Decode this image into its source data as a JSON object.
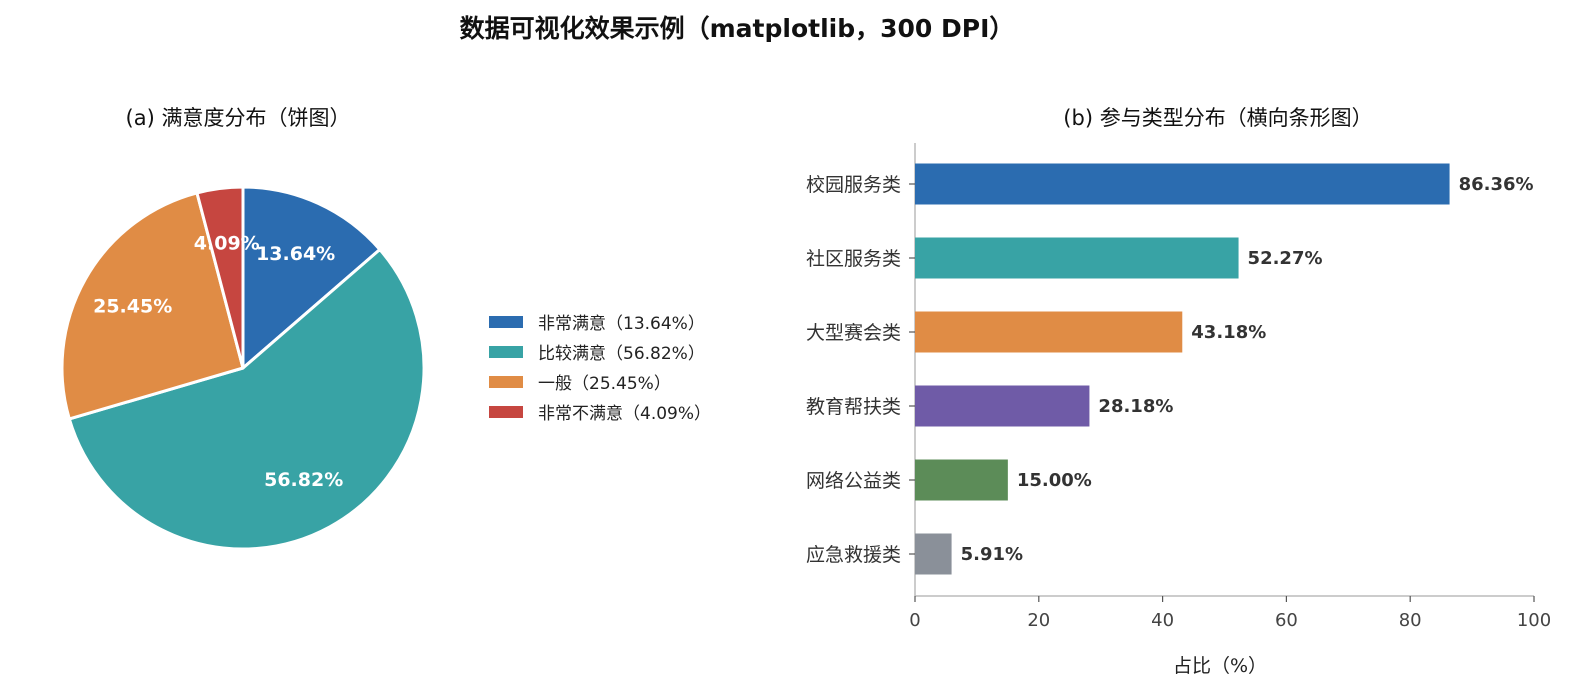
{
  "figure": {
    "title": "数据可视化效果示例（matplotlib，300 DPI）"
  },
  "chart_data": [
    {
      "type": "pie",
      "title": "(a) 满意度分布（饼图）",
      "slices": [
        {
          "label": "非常满意",
          "value": 13.64,
          "pct_label": "13.64%",
          "legend": "非常满意（13.64%）",
          "color": "#2b6cb0"
        },
        {
          "label": "比较满意",
          "value": 56.82,
          "pct_label": "56.82%",
          "legend": "比较满意（56.82%）",
          "color": "#38a3a5"
        },
        {
          "label": "一般",
          "value": 25.45,
          "pct_label": "25.45%",
          "legend": "一般（25.45%）",
          "color": "#e08c45"
        },
        {
          "label": "非常不满意",
          "value": 4.09,
          "pct_label": "4.09%",
          "legend": "非常不满意（4.09%）",
          "color": "#c64640"
        }
      ],
      "start_angle": 90,
      "direction": "clockwise",
      "legend_position": "right"
    },
    {
      "type": "bar",
      "orientation": "horizontal",
      "title": "(b) 参与类型分布（横向条形图）",
      "categories": [
        "校园服务类",
        "社区服务类",
        "大型赛会类",
        "教育帮扶类",
        "网络公益类",
        "应急救援类"
      ],
      "values": [
        86.36,
        52.27,
        43.18,
        28.18,
        15.0,
        5.91
      ],
      "value_labels": [
        "86.36%",
        "52.27%",
        "43.18%",
        "28.18%",
        "15.00%",
        "5.91%"
      ],
      "colors": [
        "#2b6cb0",
        "#38a3a5",
        "#e08c45",
        "#6f5ba7",
        "#5c8c58",
        "#8a9099"
      ],
      "xlabel": "占比（%）",
      "ylabel": "",
      "xlim": [
        0,
        100
      ],
      "xticks": [
        "0",
        "20",
        "40",
        "60",
        "80",
        "100"
      ],
      "grid": false
    }
  ]
}
